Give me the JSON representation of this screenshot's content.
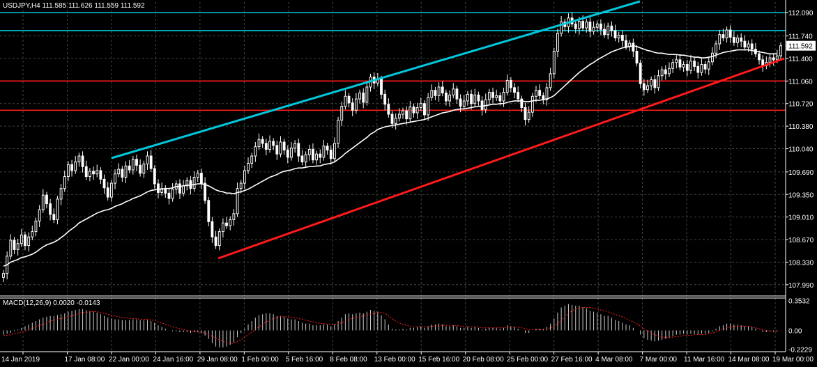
{
  "chart_data": {
    "type": "candlestick",
    "header": {
      "symbol": "USDJPY,H4",
      "open": "111.585",
      "high": "111.626",
      "low": "111.559",
      "close": "111.592"
    },
    "price_axis": {
      "ylim": [
        107.82,
        112.25
      ],
      "ticks": [
        "112.090",
        "111.740",
        "111.400",
        "111.060",
        "110.720",
        "110.380",
        "110.040",
        "109.690",
        "109.350",
        "109.010",
        "108.670",
        "108.330",
        "107.990"
      ],
      "current_price_label": "111.592",
      "current_price": 111.592
    },
    "x_axis": {
      "ticks": [
        "14 Jan 2019",
        "17 Jan 08:00",
        "22 Jan 00:00",
        "24 Jan 16:00",
        "29 Jan 08:00",
        "1 Feb 00:00",
        "5 Feb 16:00",
        "8 Feb 08:00",
        "13 Feb 00:00",
        "15 Feb 16:00",
        "20 Feb 08:00",
        "25 Feb 00:00",
        "27 Feb 16:00",
        "4 Mar 08:00",
        "7 Mar 00:00",
        "11 Mar 16:00",
        "14 Mar 08:00",
        "19 Mar 00:00"
      ]
    },
    "close_series": [
      108.16,
      108.42,
      108.66,
      108.52,
      108.61,
      108.74,
      108.58,
      108.71,
      108.79,
      108.95,
      109.12,
      109.34,
      109.21,
      109.05,
      108.97,
      109.28,
      109.44,
      109.62,
      109.8,
      109.71,
      109.84,
      109.93,
      109.77,
      109.62,
      109.7,
      109.66,
      109.71,
      109.58,
      109.45,
      109.31,
      109.52,
      109.66,
      109.73,
      109.61,
      109.78,
      109.72,
      109.88,
      109.79,
      109.67,
      109.81,
      109.93,
      109.74,
      109.51,
      109.38,
      109.44,
      109.37,
      109.29,
      109.43,
      109.51,
      109.37,
      109.48,
      109.56,
      109.44,
      109.61,
      109.67,
      109.52,
      109.26,
      108.94,
      108.71,
      108.58,
      108.79,
      108.92,
      108.88,
      108.97,
      109.06,
      109.44,
      109.52,
      109.71,
      109.82,
      109.93,
      110.07,
      110.18,
      110.12,
      110.03,
      110.15,
      110.09,
      109.96,
      110.14,
      110.02,
      109.91,
      110.05,
      110.12,
      109.93,
      109.84,
      109.95,
      110.03,
      109.87,
      109.96,
      109.91,
      110.08,
      110.02,
      109.89,
      110.12,
      110.47,
      110.68,
      110.83,
      110.73,
      110.62,
      110.79,
      110.88,
      110.74,
      110.97,
      111.12,
      111.03,
      111.09,
      110.86,
      110.71,
      110.56,
      110.42,
      110.5,
      110.56,
      110.61,
      110.49,
      110.67,
      110.58,
      110.66,
      110.72,
      110.55,
      110.81,
      110.92,
      110.84,
      110.97,
      110.88,
      110.76,
      110.85,
      110.94,
      110.79,
      110.68,
      110.76,
      110.86,
      110.72,
      110.85,
      110.76,
      110.63,
      110.78,
      110.89,
      110.81,
      110.84,
      110.76,
      110.89,
      111.07,
      110.96,
      110.89,
      110.79,
      110.66,
      110.48,
      110.59,
      110.83,
      110.92,
      110.84,
      110.78,
      110.96,
      111.17,
      111.51,
      111.78,
      111.95,
      111.88,
      112.01,
      111.92,
      111.85,
      111.96,
      111.86,
      111.95,
      111.81,
      111.87,
      111.92,
      111.84,
      111.76,
      111.89,
      111.82,
      111.71,
      111.75,
      111.67,
      111.58,
      111.63,
      111.51,
      111.33,
      111.02,
      110.93,
      110.99,
      111.08,
      110.96,
      111.14,
      111.23,
      111.17,
      111.25,
      111.34,
      111.38,
      111.27,
      111.31,
      111.22,
      111.36,
      111.28,
      111.19,
      111.31,
      111.24,
      111.35,
      111.48,
      111.62,
      111.76,
      111.71,
      111.83,
      111.72,
      111.64,
      111.71,
      111.66,
      111.57,
      111.62,
      111.54,
      111.47,
      111.38,
      111.29,
      111.34,
      111.41,
      111.38,
      111.44,
      111.592
    ],
    "ma_close": [
      108.27,
      108.29,
      108.33,
      108.35,
      108.37,
      108.4,
      108.41,
      108.43,
      108.45,
      108.48,
      108.52,
      108.56,
      108.59,
      108.61,
      108.63,
      108.66,
      108.7,
      108.74,
      108.79,
      108.83,
      108.87,
      108.92,
      108.95,
      108.98,
      109.01,
      109.04,
      109.07,
      109.09,
      109.11,
      109.12,
      109.14,
      109.17,
      109.19,
      109.21,
      109.24,
      109.26,
      109.29,
      109.31,
      109.33,
      109.36,
      109.39,
      109.41,
      109.42,
      109.43,
      109.43,
      109.44,
      109.44,
      109.45,
      109.47,
      109.47,
      109.48,
      109.49,
      109.49,
      109.5,
      109.51,
      109.51,
      109.5,
      109.48,
      109.45,
      109.42,
      109.4,
      109.39,
      109.37,
      109.37,
      109.36,
      109.38,
      109.39,
      109.41,
      109.43,
      109.46,
      109.49,
      109.52,
      109.55,
      109.58,
      109.61,
      109.63,
      109.65,
      109.68,
      109.7,
      109.71,
      109.72,
      109.74,
      109.75,
      109.75,
      109.76,
      109.77,
      109.77,
      109.78,
      109.78,
      109.8,
      109.81,
      109.82,
      109.84,
      109.88,
      109.92,
      109.97,
      110.01,
      110.05,
      110.09,
      110.13,
      110.17,
      110.21,
      110.26,
      110.29,
      110.33,
      110.35,
      110.37,
      110.38,
      110.39,
      110.4,
      110.41,
      110.42,
      110.43,
      110.44,
      110.45,
      110.46,
      110.47,
      110.48,
      110.5,
      110.52,
      110.54,
      110.56,
      110.58,
      110.59,
      110.6,
      110.62,
      110.63,
      110.64,
      110.64,
      110.65,
      110.66,
      110.67,
      110.68,
      110.68,
      110.69,
      110.7,
      110.71,
      110.71,
      110.72,
      110.72,
      110.74,
      110.75,
      110.76,
      110.76,
      110.76,
      110.75,
      110.75,
      110.76,
      110.77,
      110.77,
      110.78,
      110.79,
      110.81,
      110.84,
      110.89,
      110.94,
      110.99,
      111.04,
      111.09,
      111.14,
      111.19,
      111.23,
      111.27,
      111.31,
      111.34,
      111.38,
      111.41,
      111.44,
      111.47,
      111.5,
      111.52,
      111.54,
      111.56,
      111.57,
      111.58,
      111.59,
      111.58,
      111.56,
      111.54,
      111.52,
      111.51,
      111.49,
      111.48,
      111.48,
      111.47,
      111.46,
      111.46,
      111.46,
      111.45,
      111.45,
      111.44,
      111.43,
      111.42,
      111.42,
      111.41,
      111.41,
      111.42,
      111.43,
      111.45,
      111.47,
      111.49,
      111.5,
      111.51,
      111.52,
      111.53,
      111.53,
      111.53,
      111.53,
      111.52,
      111.51,
      111.5,
      111.49,
      111.48,
      111.47,
      111.47,
      111.47
    ],
    "trendlines": [
      {
        "color": "#00c8dc",
        "points": [
          [
            "22 Jan 00:00",
            110.05
          ],
          [
            "4 Mar 08:00",
            112.25
          ]
        ]
      },
      {
        "color": "#ff1a1a",
        "points": [
          [
            "1 Feb 00:00",
            108.55
          ],
          [
            "19 Mar 00:00",
            111.47
          ]
        ]
      }
    ],
    "horizontal_levels": [
      {
        "color": "#00c8dc",
        "value": 112.09
      },
      {
        "color": "#00c8dc",
        "value": 111.82
      },
      {
        "color": "#ff1a1a",
        "value": 111.06
      },
      {
        "color": "#ff1a1a",
        "value": 110.62
      }
    ],
    "macd": {
      "label": "MACD(12,26,9) 0.0020 -0.0143",
      "ticks": [
        "0.3532",
        "0.00",
        "-0.2229"
      ],
      "ylim": [
        -0.25,
        0.38
      ],
      "hist": [
        -0.05,
        -0.04,
        -0.03,
        -0.01,
        0.01,
        0.03,
        0.05,
        0.07,
        0.09,
        0.11,
        0.13,
        0.15,
        0.16,
        0.17,
        0.17,
        0.18,
        0.19,
        0.2,
        0.22,
        0.23,
        0.24,
        0.25,
        0.25,
        0.24,
        0.23,
        0.22,
        0.21,
        0.19,
        0.17,
        0.15,
        0.14,
        0.13,
        0.13,
        0.12,
        0.12,
        0.12,
        0.13,
        0.13,
        0.12,
        0.12,
        0.12,
        0.11,
        0.09,
        0.06,
        0.04,
        0.02,
        0.0,
        -0.01,
        -0.01,
        -0.02,
        -0.02,
        -0.02,
        -0.03,
        -0.02,
        -0.02,
        -0.03,
        -0.06,
        -0.1,
        -0.15,
        -0.19,
        -0.2,
        -0.2,
        -0.19,
        -0.17,
        -0.14,
        -0.08,
        -0.03,
        0.02,
        0.07,
        0.11,
        0.15,
        0.18,
        0.19,
        0.2,
        0.2,
        0.19,
        0.17,
        0.17,
        0.16,
        0.14,
        0.13,
        0.13,
        0.11,
        0.09,
        0.08,
        0.08,
        0.06,
        0.06,
        0.06,
        0.07,
        0.07,
        0.05,
        0.07,
        0.11,
        0.15,
        0.19,
        0.2,
        0.19,
        0.2,
        0.21,
        0.2,
        0.22,
        0.24,
        0.23,
        0.22,
        0.18,
        0.13,
        0.07,
        0.02,
        0.01,
        0.01,
        0.02,
        0.01,
        0.03,
        0.03,
        0.04,
        0.05,
        0.03,
        0.05,
        0.07,
        0.07,
        0.08,
        0.07,
        0.05,
        0.05,
        0.06,
        0.05,
        0.03,
        0.03,
        0.04,
        0.03,
        0.04,
        0.03,
        0.01,
        0.02,
        0.03,
        0.03,
        0.03,
        0.02,
        0.03,
        0.06,
        0.05,
        0.04,
        0.02,
        0.0,
        -0.03,
        -0.03,
        0.0,
        0.02,
        0.02,
        0.02,
        0.04,
        0.08,
        0.14,
        0.21,
        0.27,
        0.29,
        0.31,
        0.3,
        0.29,
        0.29,
        0.27,
        0.26,
        0.23,
        0.22,
        0.21,
        0.19,
        0.17,
        0.17,
        0.15,
        0.12,
        0.11,
        0.09,
        0.07,
        0.06,
        0.03,
        0.0,
        -0.05,
        -0.09,
        -0.11,
        -0.12,
        -0.13,
        -0.12,
        -0.11,
        -0.1,
        -0.09,
        -0.07,
        -0.05,
        -0.05,
        -0.04,
        -0.05,
        -0.04,
        -0.04,
        -0.05,
        -0.04,
        -0.04,
        -0.03,
        -0.01,
        0.02,
        0.05,
        0.06,
        0.08,
        0.08,
        0.07,
        0.07,
        0.06,
        0.05,
        0.05,
        0.04,
        0.02,
        0.0,
        -0.02,
        -0.02,
        -0.01,
        -0.02,
        -0.01,
        0.002
      ],
      "signal": [
        -0.06,
        -0.06,
        -0.05,
        -0.04,
        -0.03,
        -0.02,
        -0.01,
        0.01,
        0.02,
        0.04,
        0.06,
        0.07,
        0.09,
        0.11,
        0.12,
        0.13,
        0.14,
        0.15,
        0.16,
        0.17,
        0.18,
        0.2,
        0.21,
        0.21,
        0.22,
        0.22,
        0.22,
        0.21,
        0.2,
        0.19,
        0.18,
        0.17,
        0.16,
        0.15,
        0.15,
        0.14,
        0.14,
        0.14,
        0.13,
        0.13,
        0.13,
        0.12,
        0.12,
        0.1,
        0.09,
        0.07,
        0.06,
        0.04,
        0.03,
        0.02,
        0.01,
        0.0,
        -0.01,
        -0.01,
        -0.02,
        -0.02,
        -0.03,
        -0.05,
        -0.07,
        -0.09,
        -0.11,
        -0.13,
        -0.14,
        -0.15,
        -0.15,
        -0.13,
        -0.11,
        -0.08,
        -0.05,
        -0.02,
        0.01,
        0.04,
        0.07,
        0.1,
        0.12,
        0.14,
        0.15,
        0.16,
        0.16,
        0.16,
        0.15,
        0.15,
        0.14,
        0.13,
        0.12,
        0.11,
        0.1,
        0.09,
        0.08,
        0.08,
        0.07,
        0.07,
        0.07,
        0.08,
        0.09,
        0.11,
        0.13,
        0.14,
        0.15,
        0.16,
        0.17,
        0.18,
        0.19,
        0.2,
        0.21,
        0.21,
        0.2,
        0.17,
        0.14,
        0.11,
        0.09,
        0.07,
        0.06,
        0.05,
        0.04,
        0.04,
        0.04,
        0.04,
        0.04,
        0.05,
        0.05,
        0.06,
        0.06,
        0.06,
        0.06,
        0.06,
        0.06,
        0.05,
        0.05,
        0.05,
        0.04,
        0.04,
        0.04,
        0.03,
        0.03,
        0.03,
        0.03,
        0.03,
        0.03,
        0.03,
        0.04,
        0.04,
        0.04,
        0.04,
        0.03,
        0.02,
        0.01,
        0.01,
        0.01,
        0.01,
        0.01,
        0.02,
        0.03,
        0.05,
        0.08,
        0.12,
        0.16,
        0.2,
        0.23,
        0.25,
        0.26,
        0.27,
        0.27,
        0.27,
        0.26,
        0.25,
        0.24,
        0.23,
        0.22,
        0.2,
        0.19,
        0.17,
        0.16,
        0.14,
        0.12,
        0.1,
        0.08,
        0.05,
        0.02,
        -0.01,
        -0.03,
        -0.05,
        -0.07,
        -0.08,
        -0.08,
        -0.08,
        -0.08,
        -0.07,
        -0.07,
        -0.06,
        -0.06,
        -0.06,
        -0.05,
        -0.05,
        -0.05,
        -0.05,
        -0.04,
        -0.03,
        -0.02,
        0.0,
        0.02,
        0.03,
        0.04,
        0.05,
        0.05,
        0.05,
        0.05,
        0.05,
        0.04,
        0.03,
        0.02,
        0.01,
        0.0,
        -0.01,
        -0.01,
        -0.014
      ]
    },
    "colors": {
      "background": "#000000",
      "grid": "#3a4a3a",
      "candle": "#ffffff",
      "ma": "#ffffff",
      "cyan": "#00c8dc",
      "red": "#ff1a1a",
      "signal": "#ff2020"
    }
  }
}
